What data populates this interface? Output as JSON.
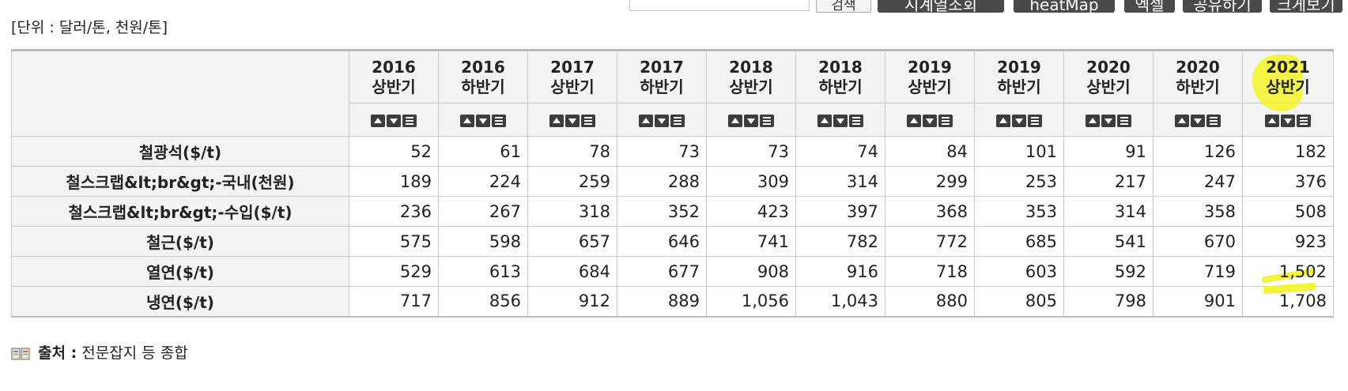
{
  "toolbar": {
    "search_button": "검색",
    "buttons": [
      "시계열조회",
      "heatMap",
      "엑셀",
      "공유하기",
      "크게보기"
    ]
  },
  "unit_label": "[단위 : 달러/톤, 천원/톤]",
  "table": {
    "columns": [
      {
        "year": "2016",
        "half": "상반기"
      },
      {
        "year": "2016",
        "half": "하반기"
      },
      {
        "year": "2017",
        "half": "상반기"
      },
      {
        "year": "2017",
        "half": "하반기"
      },
      {
        "year": "2018",
        "half": "상반기"
      },
      {
        "year": "2018",
        "half": "하반기"
      },
      {
        "year": "2019",
        "half": "상반기"
      },
      {
        "year": "2019",
        "half": "하반기"
      },
      {
        "year": "2020",
        "half": "상반기"
      },
      {
        "year": "2020",
        "half": "하반기"
      },
      {
        "year": "2021",
        "half": "상반기"
      }
    ],
    "rows": [
      {
        "label": "철광석($/t)",
        "values": [
          "52",
          "61",
          "78",
          "73",
          "73",
          "74",
          "84",
          "101",
          "91",
          "126",
          "182"
        ]
      },
      {
        "label": "철스크랩&lt;br&gt;-국내(천원)",
        "values": [
          "189",
          "224",
          "259",
          "288",
          "309",
          "314",
          "299",
          "253",
          "217",
          "247",
          "376"
        ]
      },
      {
        "label": "철스크랩&lt;br&gt;-수입($/t)",
        "values": [
          "236",
          "267",
          "318",
          "352",
          "423",
          "397",
          "368",
          "353",
          "314",
          "358",
          "508"
        ]
      },
      {
        "label": "철근($/t)",
        "values": [
          "575",
          "598",
          "657",
          "646",
          "741",
          "782",
          "772",
          "685",
          "541",
          "670",
          "923"
        ]
      },
      {
        "label": "열연($/t)",
        "values": [
          "529",
          "613",
          "684",
          "677",
          "908",
          "916",
          "718",
          "603",
          "592",
          "719",
          "1,502"
        ]
      },
      {
        "label": "냉연($/t)",
        "values": [
          "717",
          "856",
          "912",
          "889",
          "1,056",
          "1,043",
          "880",
          "805",
          "798",
          "901",
          "1,708"
        ]
      }
    ]
  },
  "source": {
    "label": "출처 :",
    "text": "전문잡지 등 종합"
  },
  "colors": {
    "highlight": "#f3f325",
    "button_dark": "#4a4a4a",
    "header_bg": "#f3f3f3"
  }
}
